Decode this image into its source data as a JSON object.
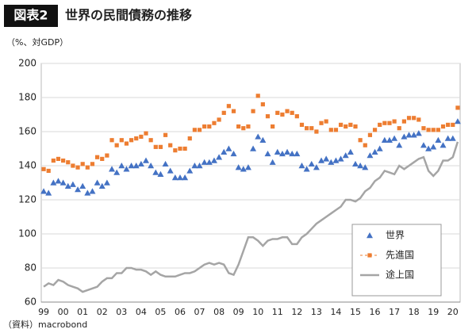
{
  "chart_data": {
    "type": "line",
    "badge": "図表2",
    "title": "世界の民間債務の推移",
    "y_label": "（%、対GDP）",
    "source": "（資料）macrobond",
    "categories": [
      "99",
      null,
      null,
      null,
      "00",
      null,
      null,
      null,
      "01",
      null,
      null,
      null,
      "02",
      null,
      null,
      null,
      "03",
      null,
      null,
      null,
      "04",
      null,
      null,
      null,
      "05",
      null,
      null,
      null,
      "06",
      null,
      null,
      null,
      "07",
      null,
      null,
      null,
      "08",
      null,
      null,
      null,
      "09",
      null,
      null,
      null,
      "10",
      null,
      null,
      null,
      "11",
      null,
      null,
      null,
      "12",
      null,
      null,
      null,
      "13",
      null,
      null,
      null,
      "14",
      null,
      null,
      null,
      "15",
      null,
      null,
      null,
      "16",
      null,
      null,
      null,
      "17",
      null,
      null,
      null,
      "18",
      null,
      null,
      null,
      "19",
      null,
      null,
      null,
      "20",
      null
    ],
    "series": [
      {
        "name": "世界",
        "color": "#4472c4",
        "marker": "triangle",
        "values": [
          125,
          124,
          130,
          131,
          130,
          128,
          129,
          126,
          128,
          124,
          125,
          130,
          128,
          130,
          138,
          136,
          140,
          138,
          140,
          140,
          141,
          143,
          140,
          136,
          135,
          141,
          137,
          133,
          133,
          133,
          137,
          140,
          140,
          142,
          142,
          143,
          145,
          148,
          150,
          147,
          139,
          138,
          139,
          150,
          157,
          155,
          147,
          142,
          148,
          147,
          148,
          147,
          147,
          140,
          138,
          141,
          139,
          143,
          144,
          142,
          143,
          144,
          146,
          148,
          141,
          140,
          139,
          146,
          148,
          150,
          155,
          155,
          156,
          152,
          157,
          158,
          158,
          159,
          152,
          150,
          151,
          155,
          152,
          156,
          156,
          166
        ]
      },
      {
        "name": "先進国",
        "color": "#ed7d31",
        "marker": "square",
        "values": [
          138,
          137,
          143,
          144,
          143,
          142,
          140,
          139,
          141,
          139,
          141,
          145,
          144,
          146,
          155,
          152,
          155,
          153,
          155,
          156,
          157,
          159,
          155,
          151,
          151,
          158,
          152,
          149,
          150,
          150,
          156,
          161,
          161,
          163,
          163,
          165,
          167,
          171,
          175,
          172,
          163,
          162,
          163,
          172,
          181,
          176,
          169,
          163,
          171,
          170,
          172,
          171,
          169,
          164,
          162,
          162,
          160,
          165,
          166,
          161,
          161,
          164,
          163,
          164,
          163,
          155,
          152,
          158,
          161,
          164,
          165,
          165,
          166,
          162,
          166,
          168,
          168,
          167,
          162,
          161,
          161,
          161,
          163,
          164,
          164,
          174
        ]
      },
      {
        "name": "途上国",
        "color": "#a5a5a5",
        "marker": "none",
        "values": [
          69,
          71,
          70,
          73,
          72,
          70,
          69,
          68,
          66,
          67,
          68,
          69,
          72,
          74,
          74,
          77,
          77,
          80,
          80,
          79,
          79,
          78,
          76,
          78,
          76,
          75,
          75,
          75,
          76,
          77,
          77,
          78,
          80,
          82,
          83,
          82,
          83,
          82,
          77,
          76,
          82,
          90,
          98,
          98,
          96,
          93,
          96,
          97,
          97,
          98,
          98,
          94,
          94,
          98,
          100,
          103,
          106,
          108,
          110,
          112,
          114,
          116,
          120,
          120,
          119,
          121,
          125,
          127,
          131,
          133,
          137,
          136,
          135,
          140,
          138,
          140,
          142,
          144,
          145,
          137,
          134,
          137,
          143,
          143,
          145,
          154
        ]
      }
    ],
    "ylim": [
      60,
      200
    ],
    "yticks": [
      60,
      80,
      100,
      120,
      140,
      160,
      180,
      200
    ],
    "grid": true,
    "legend": "lower right"
  }
}
